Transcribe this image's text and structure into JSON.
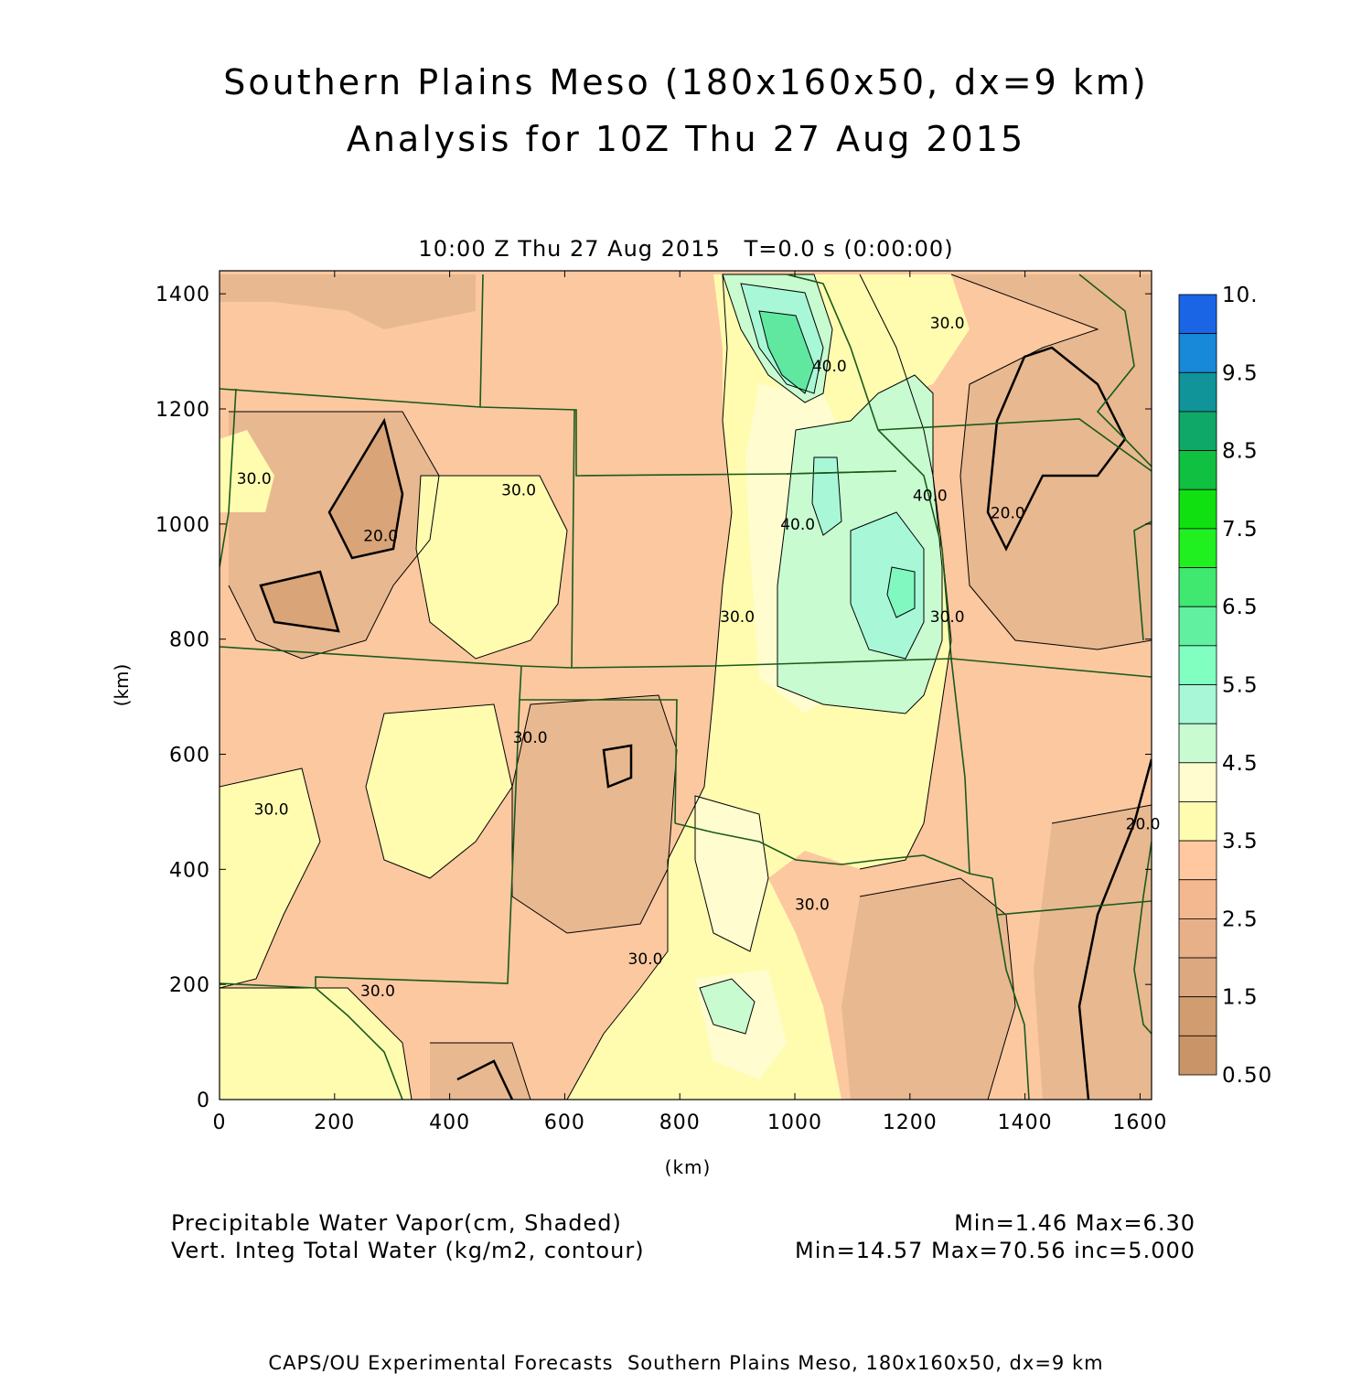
{
  "title": {
    "line1": "Southern Plains Meso (180x160x50, dx=9 km)",
    "line2": "Analysis for 10Z Thu 27 Aug 2015"
  },
  "subtitle": "10:00 Z Thu 27 Aug 2015   T=0.0 s (0:00:00)",
  "axes": {
    "x_label": "(km)",
    "y_label": "(km)",
    "x_ticks": [
      "0",
      "200",
      "400",
      "600",
      "800",
      "1000",
      "1200",
      "1400",
      "1600"
    ],
    "y_ticks": [
      "0",
      "200",
      "400",
      "600",
      "800",
      "1000",
      "1200",
      "1400"
    ],
    "x_range": [
      0,
      1620
    ],
    "y_range": [
      0,
      1440
    ]
  },
  "colorbar": {
    "labels": [
      "10.",
      "9.5",
      "8.5",
      "7.5",
      "6.5",
      "5.5",
      "4.5",
      "3.5",
      "2.5",
      "1.5",
      "0.50"
    ],
    "colors": [
      "#0a30f0",
      "#1a64e6",
      "#1888d8",
      "#10949a",
      "#10a868",
      "#10c040",
      "#10e010",
      "#20f020",
      "#40e870",
      "#60f0a0",
      "#80ffc0",
      "#a8f8d8",
      "#c8fcd0",
      "#fffcd0",
      "#fffcb0",
      "#ffc8a0",
      "#f4b890",
      "#e8b088",
      "#dca880",
      "#d09c70",
      "#c89468"
    ]
  },
  "contour_labels": [
    {
      "text": "30.0",
      "x": 60,
      "y": 1070
    },
    {
      "text": "20.0",
      "x": 280,
      "y": 970
    },
    {
      "text": "30.0",
      "x": 520,
      "y": 1050
    },
    {
      "text": "30.0",
      "x": 900,
      "y": 830
    },
    {
      "text": "40.0",
      "x": 1005,
      "y": 990
    },
    {
      "text": "30.0",
      "x": 1265,
      "y": 1340
    },
    {
      "text": "40.0",
      "x": 1235,
      "y": 1040
    },
    {
      "text": "30.0",
      "x": 1265,
      "y": 830
    },
    {
      "text": "20.0",
      "x": 1370,
      "y": 1010
    },
    {
      "text": "30.0",
      "x": 540,
      "y": 620
    },
    {
      "text": "30.0",
      "x": 90,
      "y": 495
    },
    {
      "text": "20.0",
      "x": 1605,
      "y": 470
    },
    {
      "text": "30.0",
      "x": 1030,
      "y": 330
    },
    {
      "text": "30.0",
      "x": 740,
      "y": 235
    },
    {
      "text": "30.0",
      "x": 275,
      "y": 180
    },
    {
      "text": "40.0",
      "x": 1060,
      "y": 1265
    }
  ],
  "legend": {
    "shaded": "Precipitable Water Vapor(cm, Shaded)",
    "shaded_stats": "Min=1.46 Max=6.30",
    "contour": "Vert. Integ Total Water (kg/m2, contour)",
    "contour_stats": "Min=14.57 Max=70.56 inc=5.000"
  },
  "footer": "CAPS/OU Experimental Forecasts  Southern Plains Meso, 180x160x50, dx=9 km"
}
